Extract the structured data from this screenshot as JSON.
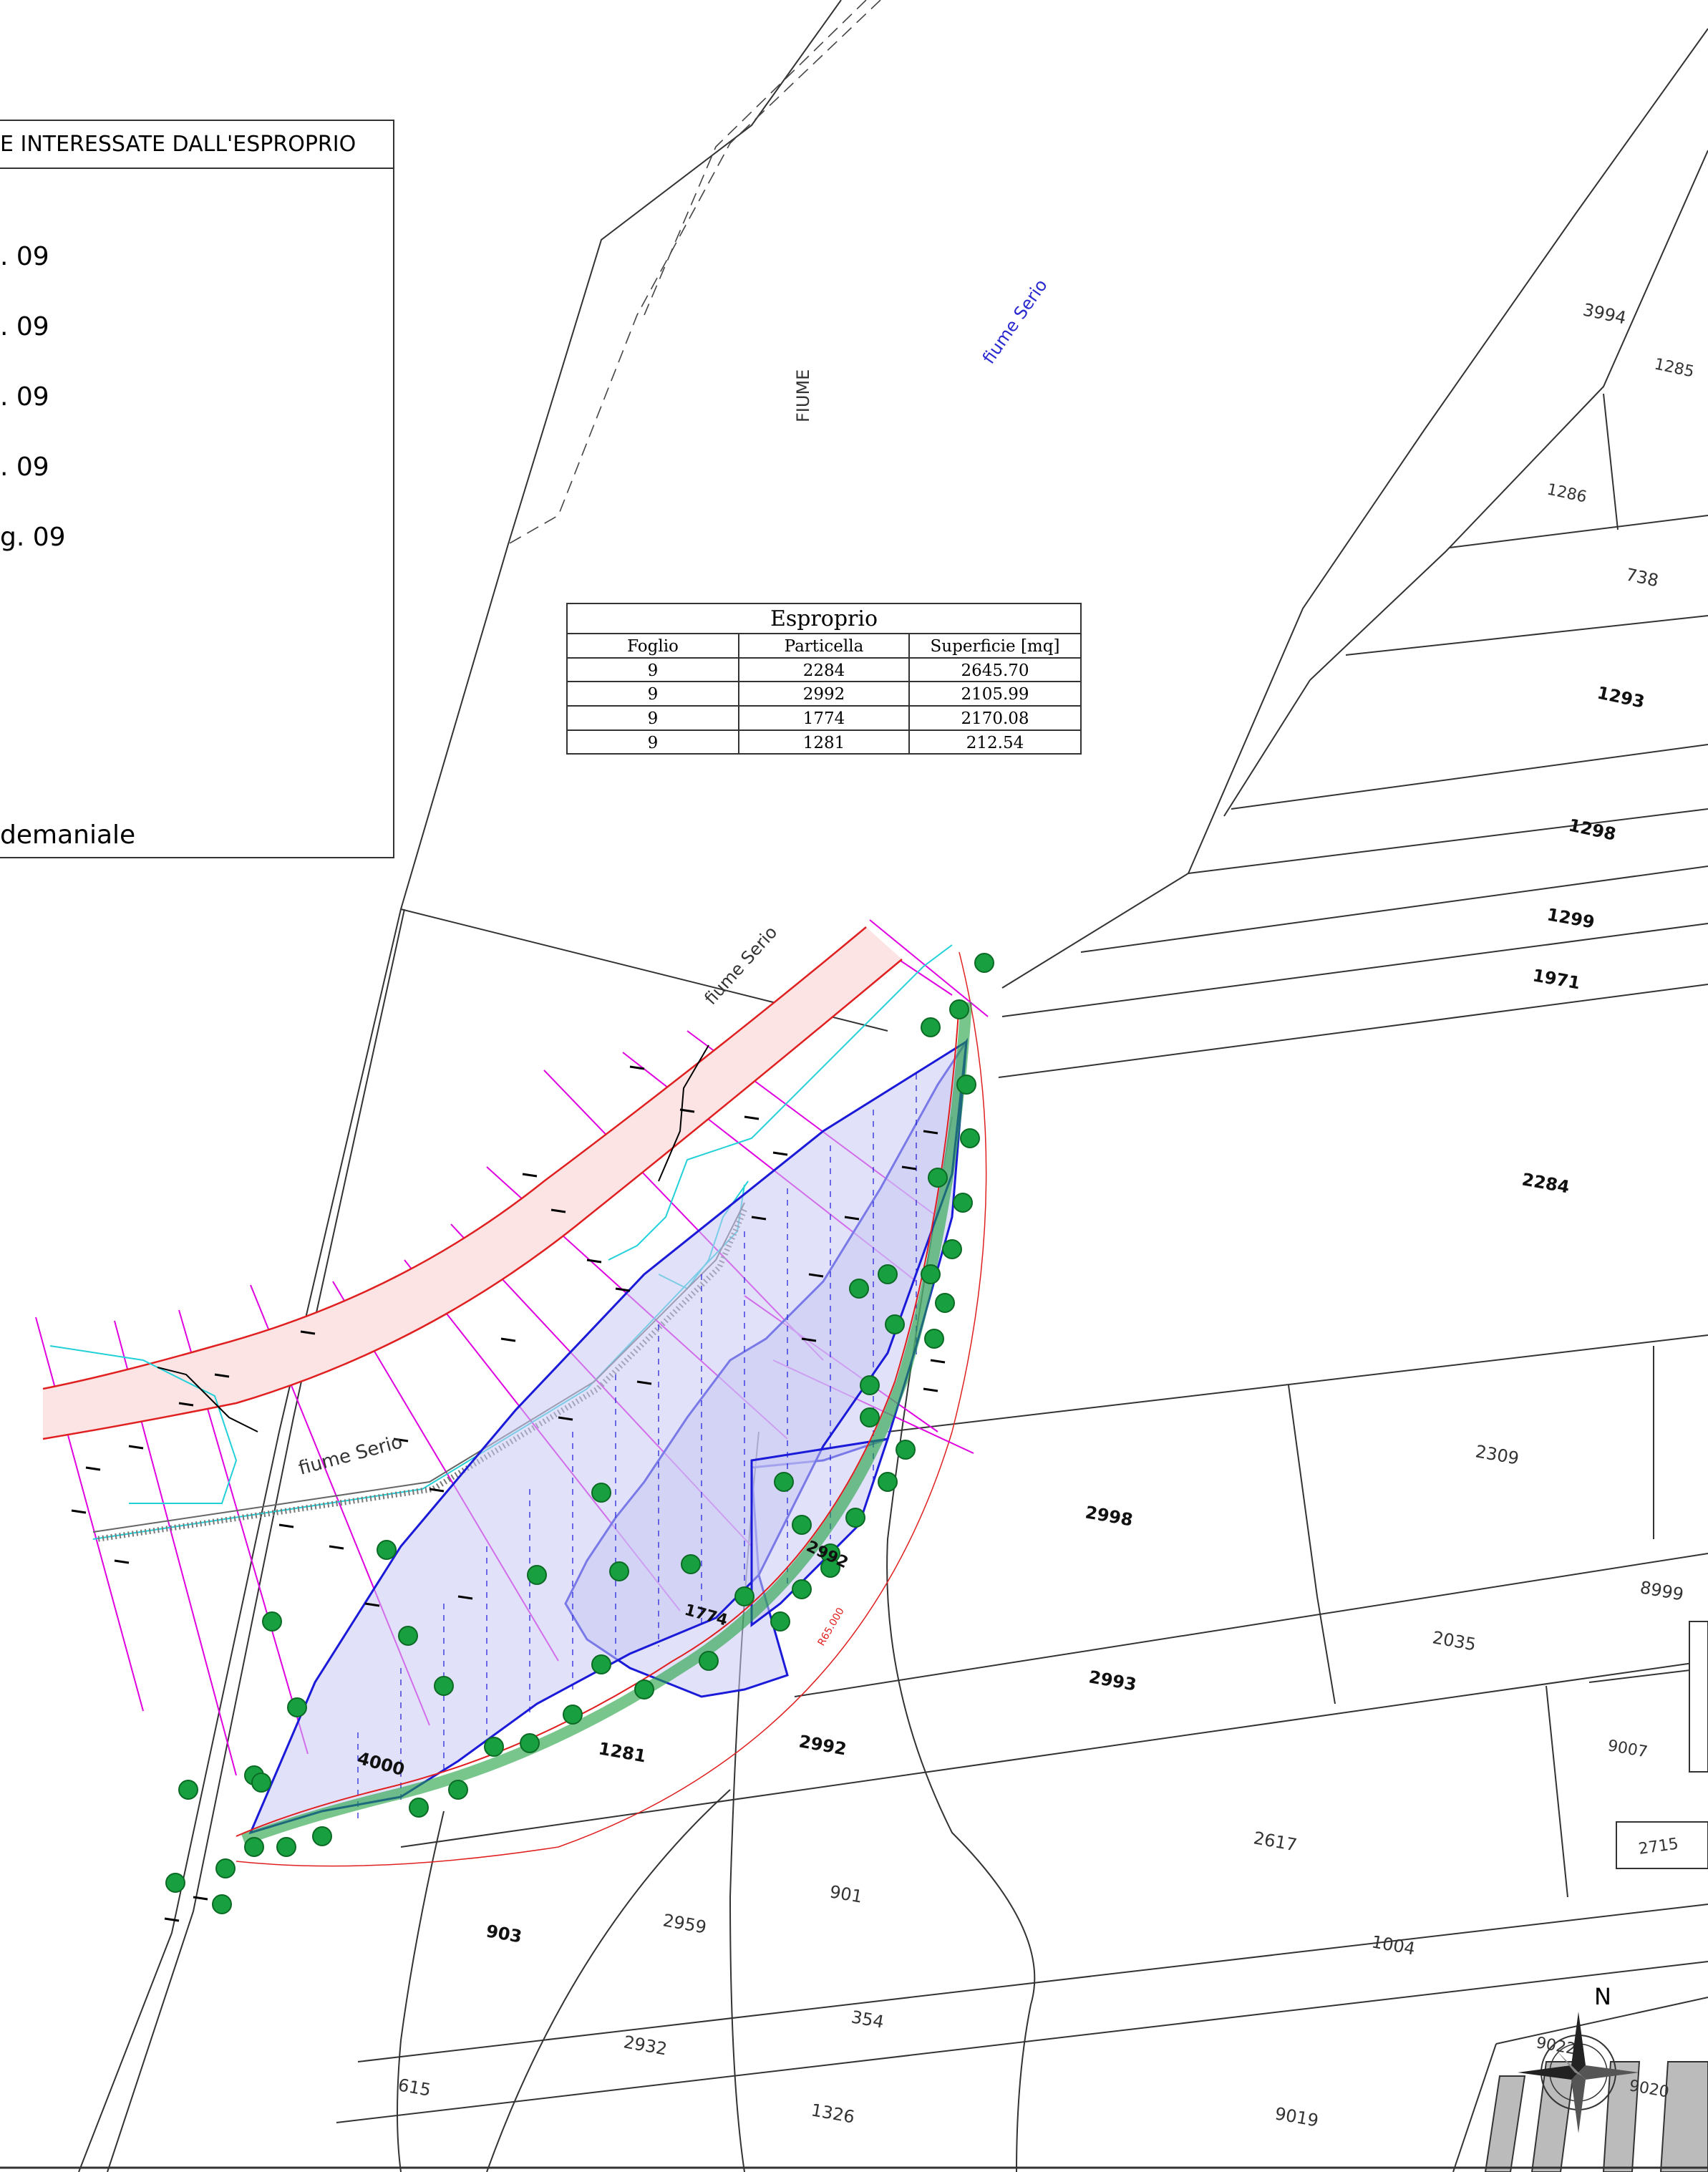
{
  "legend": {
    "title": "E INTERESSATE DALL'ESPROPRIO",
    "rows": [
      ". 09",
      ". 09",
      ". 09",
      ". 09",
      "g. 09"
    ],
    "footer": "demaniale"
  },
  "table": {
    "title": "Esproprio",
    "headers": [
      "Foglio",
      "Particella",
      "Superficie [mq]"
    ],
    "rows": [
      [
        "9",
        "2284",
        "2645.70"
      ],
      [
        "9",
        "2992",
        "2105.99"
      ],
      [
        "9",
        "1774",
        "2170.08"
      ],
      [
        "9",
        "1281",
        "212.54"
      ]
    ]
  },
  "labels": {
    "fiume_vertical": "FIUME",
    "fiume_serio_top": "fiume Serio",
    "fiume_serio_mid": "fiume Serio",
    "fiume_serio_low": "fiume Serio",
    "radius": "R65.000",
    "north": "N"
  },
  "parcels": {
    "p3994": "3994",
    "p1285": "1285",
    "p1286": "1286",
    "p738": "738",
    "p1293": "1293",
    "p1298": "1298",
    "p1299": "1299",
    "p1971": "1971",
    "p2284": "2284",
    "p2309": "2309",
    "p2998": "2998",
    "p8999": "8999",
    "p2035": "2035",
    "p2993": "2993",
    "p2992a": "2992",
    "p2992b": "2992",
    "p1774": "1774",
    "p9007": "9007",
    "p1281": "1281",
    "p4000": "4000",
    "p2617": "2617",
    "p2715": "2715",
    "p903": "903",
    "p2959": "2959",
    "p901": "901",
    "p1004": "1004",
    "p354": "354",
    "p2932": "2932",
    "p615": "615",
    "p1326": "1326",
    "p9019": "9019",
    "p9022": "9022",
    "p9020": "9020"
  },
  "colors": {
    "expropriation_outline": "#1a1ad8",
    "river_bank": "#e02020",
    "section_lines": "#e000e0",
    "water": "#22d0d8",
    "trees": "#18a040",
    "cadastral": "#333333"
  }
}
